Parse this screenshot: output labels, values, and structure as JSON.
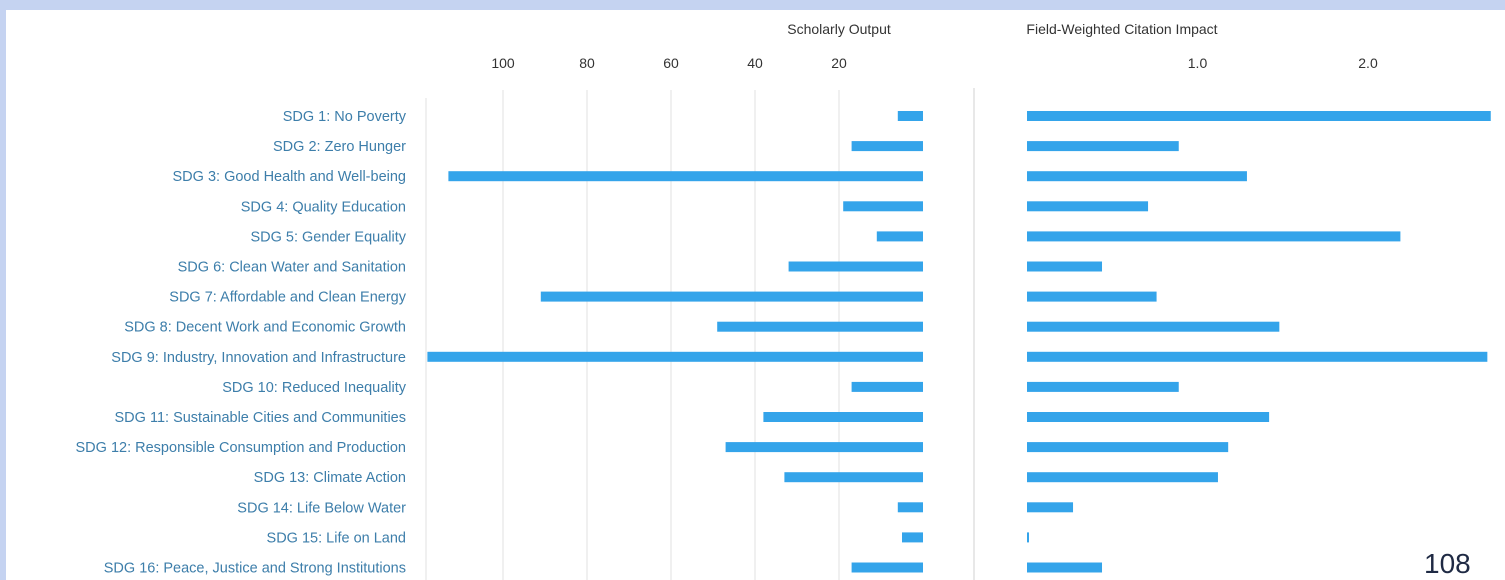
{
  "page_number": "108",
  "colors": {
    "bar": "#34a4ea",
    "category_label": "#3d7eaa",
    "axis_text": "#333333",
    "grid": "#e1e1e1",
    "slide_background": "#c5d3f1"
  },
  "chart_data": [
    {
      "type": "bar",
      "orientation": "horizontal",
      "direction": "reversed",
      "title": "Scholarly Output",
      "xlim": [
        0,
        117
      ],
      "ticks": [
        100,
        80,
        60,
        40,
        20
      ],
      "tick_labels": [
        "100",
        "80",
        "60",
        "40",
        "20"
      ],
      "grid": true,
      "categories": [
        "SDG 1: No Poverty",
        "SDG 2: Zero Hunger",
        "SDG 3: Good Health and Well-being",
        "SDG 4: Quality Education",
        "SDG 5: Gender Equality",
        "SDG 6: Clean Water and Sanitation",
        "SDG 7: Affordable and Clean Energy",
        "SDG 8: Decent Work and Economic Growth",
        "SDG 9: Industry, Innovation and Infrastructure",
        "SDG 10: Reduced Inequality",
        "SDG 11: Sustainable Cities and Communities",
        "SDG 12: Responsible Consumption and Production",
        "SDG 13: Climate Action",
        "SDG 14: Life Below Water",
        "SDG 15: Life on Land",
        "SDG 16: Peace, Justice and Strong Institutions"
      ],
      "values": [
        6,
        17,
        113,
        19,
        11,
        32,
        91,
        49,
        118,
        17,
        38,
        47,
        33,
        6,
        5,
        17
      ]
    },
    {
      "type": "bar",
      "orientation": "horizontal",
      "title": "Field-Weighted Citation Impact",
      "xlim": [
        0,
        2.7
      ],
      "ticks": [
        1.0,
        2.0
      ],
      "tick_labels": [
        "1.0",
        "2.0"
      ],
      "grid": false,
      "values": [
        2.72,
        0.89,
        1.29,
        0.71,
        2.19,
        0.44,
        0.76,
        1.48,
        2.7,
        0.89,
        1.42,
        1.18,
        1.12,
        0.27,
        0.01,
        0.44
      ]
    }
  ]
}
